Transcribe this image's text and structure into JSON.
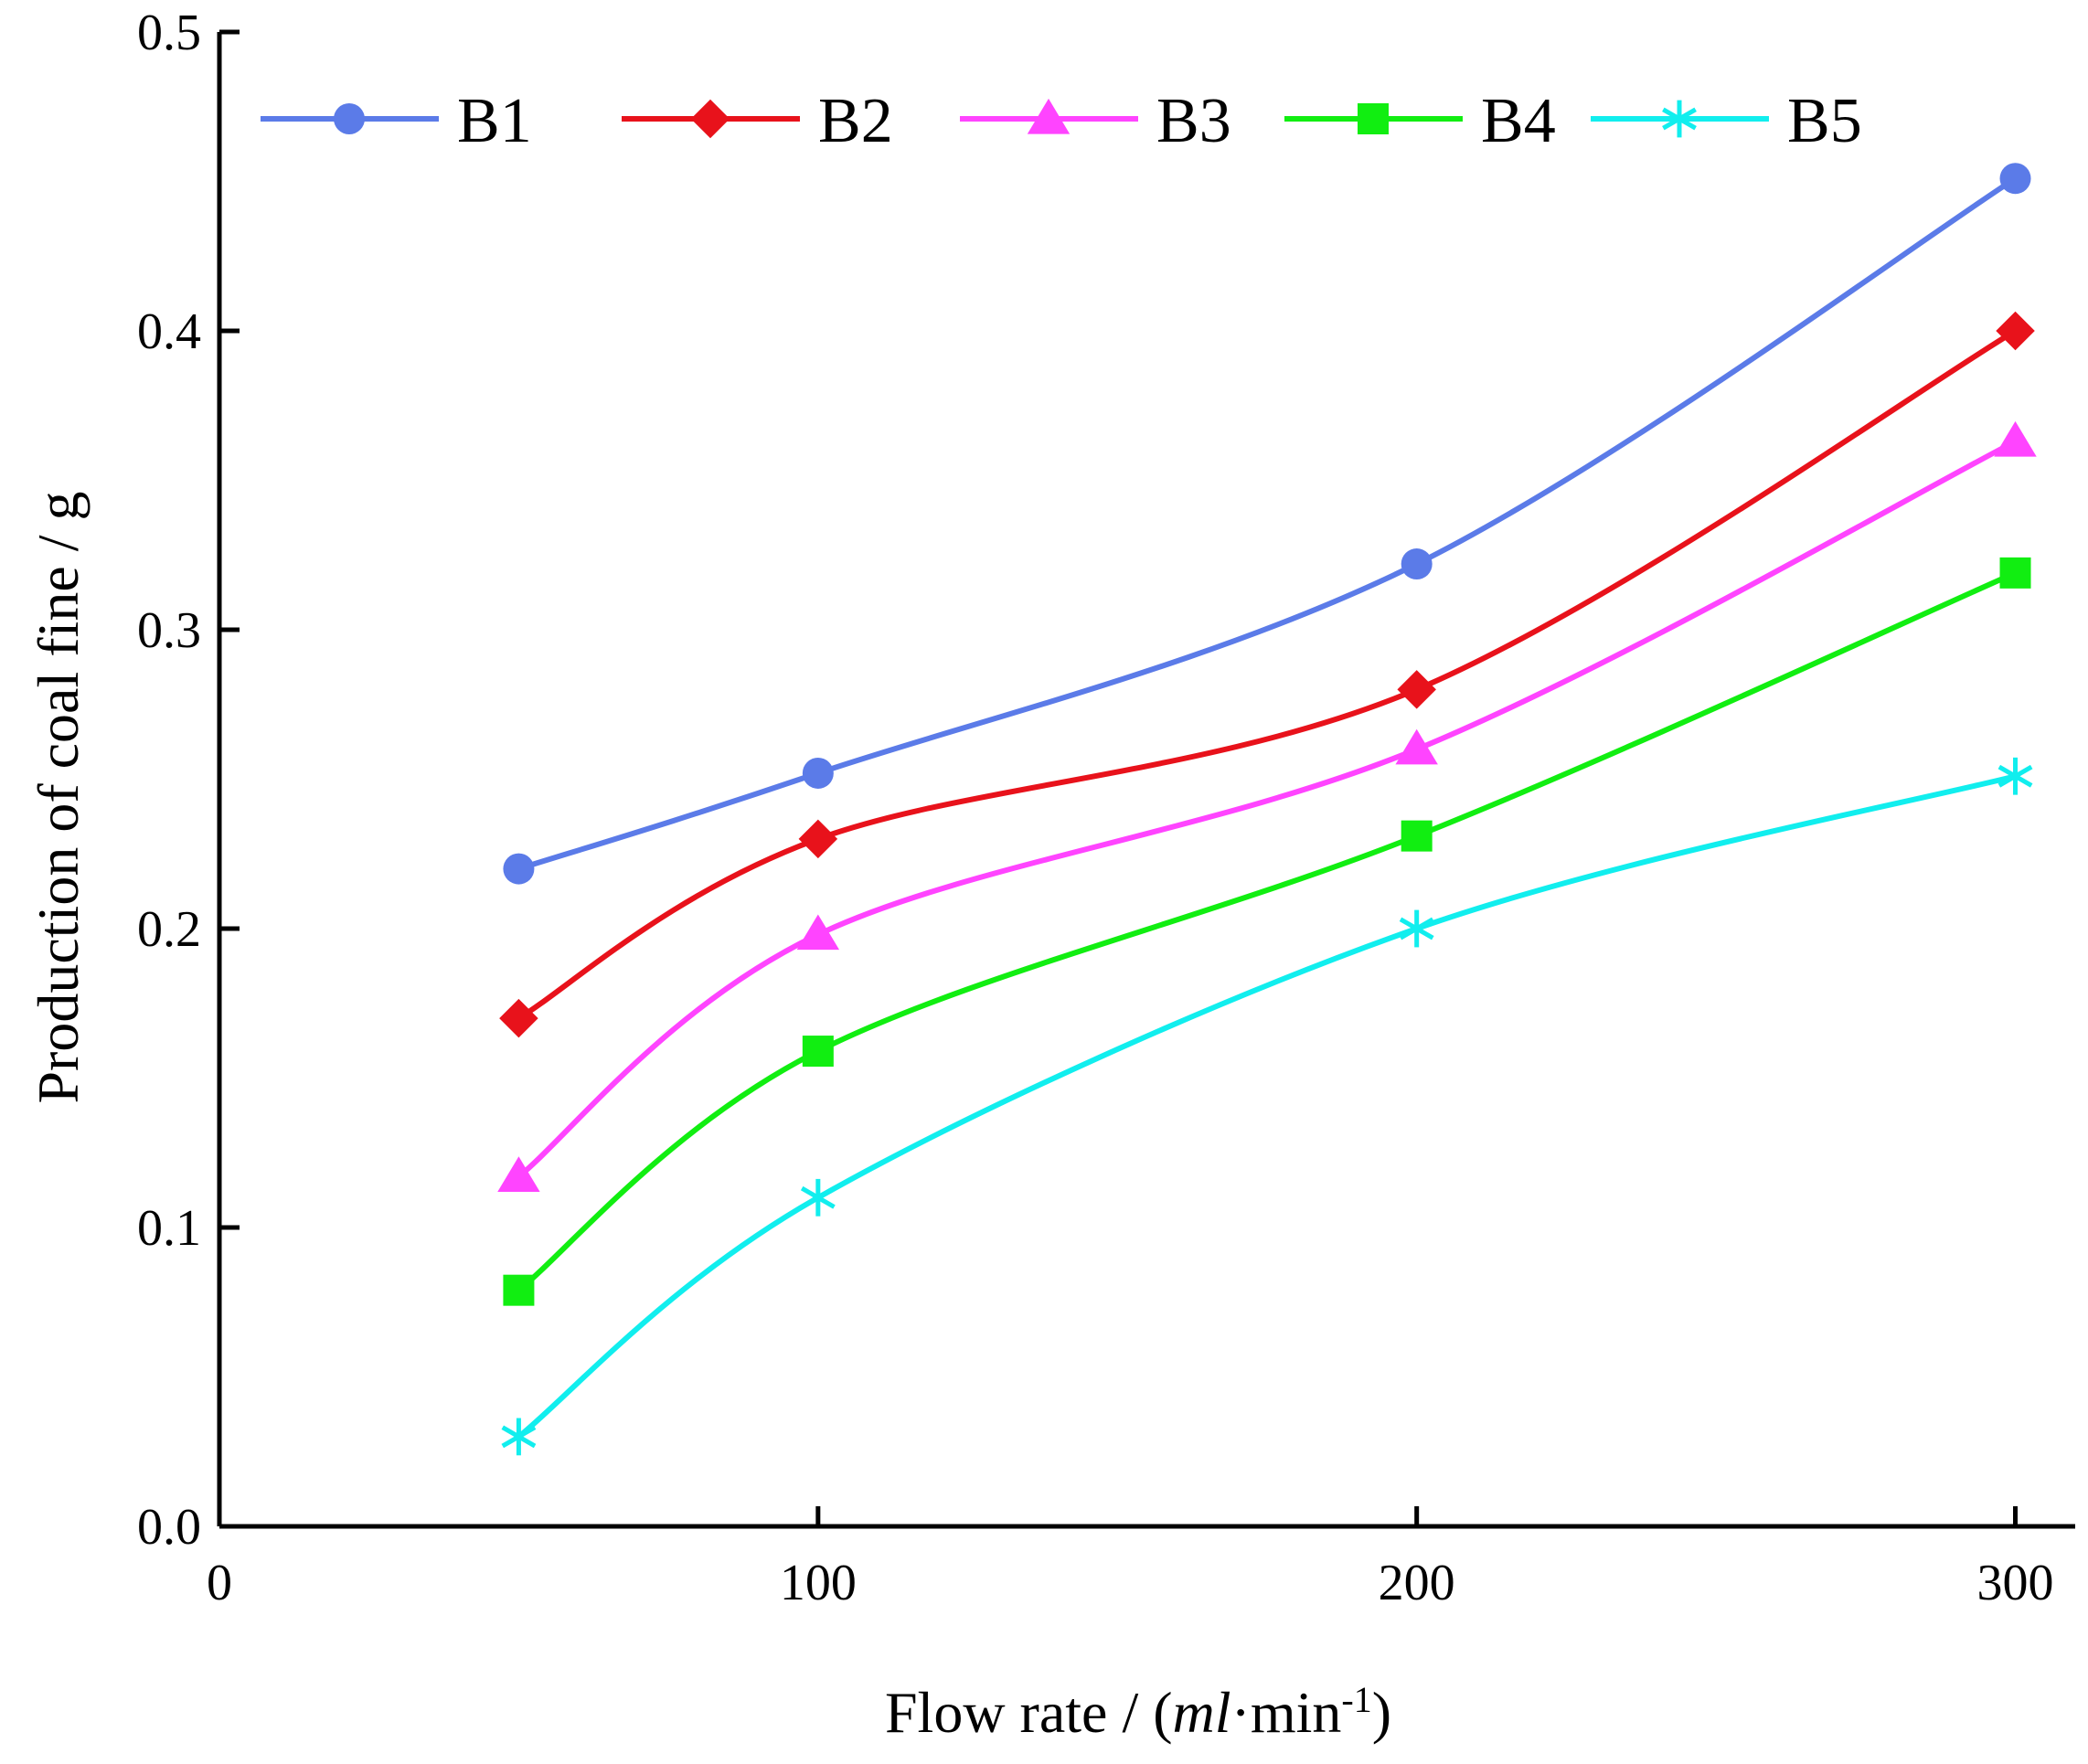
{
  "chart_data": {
    "type": "line",
    "title": "",
    "xlabel": {
      "prefix": "Flow rate / (",
      "italic": "ml",
      "mid": "·min",
      "superscript": "-1",
      "suffix": ")"
    },
    "ylabel": "Production of coal fine / g",
    "xlim": [
      0,
      310
    ],
    "ylim": [
      0,
      0.5
    ],
    "x_ticks": [
      "0",
      "100",
      "200",
      "300"
    ],
    "y_ticks": [
      "0.0",
      "0.1",
      "0.2",
      "0.3",
      "0.4",
      "0.5"
    ],
    "grid": false,
    "legend_position": "top",
    "x": [
      50,
      100,
      200,
      300
    ],
    "series": [
      {
        "name": "B1",
        "color": "#5b7be8",
        "marker": "circle",
        "values": [
          0.22,
          0.252,
          0.322,
          0.451
        ]
      },
      {
        "name": "B2",
        "color": "#e8121b",
        "marker": "diamond",
        "values": [
          0.17,
          0.23,
          0.28,
          0.4
        ]
      },
      {
        "name": "B3",
        "color": "#ff44ff",
        "marker": "triangle",
        "values": [
          0.117,
          0.198,
          0.26,
          0.363
        ]
      },
      {
        "name": "B4",
        "color": "#11ee11",
        "marker": "square",
        "values": [
          0.079,
          0.159,
          0.231,
          0.319
        ]
      },
      {
        "name": "B5",
        "color": "#11eeee",
        "marker": "asterisk",
        "values": [
          0.03,
          0.11,
          0.2,
          0.251
        ]
      }
    ]
  }
}
